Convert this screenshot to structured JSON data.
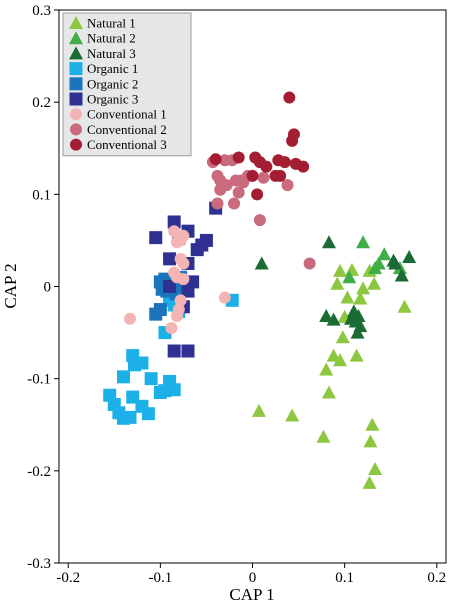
{
  "chart_data": {
    "type": "scatter",
    "title": "",
    "xlabel": "CAP 1",
    "ylabel": "CAP 2",
    "xlim": [
      -0.21,
      0.21
    ],
    "ylim": [
      -0.3,
      0.3
    ],
    "xticks": [
      -0.2,
      -0.1,
      0,
      0.1,
      0.2
    ],
    "xtick_labels": [
      "-0.2",
      "-0.1",
      "0",
      "0.1",
      "0.2"
    ],
    "yticks": [
      -0.3,
      -0.2,
      -0.1,
      0,
      0.1,
      0.2,
      0.3
    ],
    "ytick_labels": [
      "-0.3",
      "-0.2",
      "-0.1",
      "0",
      "0.1",
      "0.2",
      "0.3"
    ],
    "grid": false,
    "legend_position": "top-left",
    "series": [
      {
        "name": "Natural 1",
        "marker": "triangle",
        "color": "#8dc63f",
        "points": [
          [
            0.007,
            -0.135
          ],
          [
            0.043,
            -0.14
          ],
          [
            0.077,
            -0.163
          ],
          [
            0.083,
            -0.115
          ],
          [
            0.08,
            -0.09
          ],
          [
            0.088,
            -0.075
          ],
          [
            0.095,
            -0.08
          ],
          [
            0.113,
            -0.075
          ],
          [
            0.13,
            -0.15
          ],
          [
            0.128,
            -0.168
          ],
          [
            0.133,
            -0.198
          ],
          [
            0.127,
            -0.213
          ],
          [
            0.098,
            -0.055
          ],
          [
            0.1,
            -0.033
          ],
          [
            0.103,
            -0.012
          ],
          [
            0.117,
            -0.013
          ],
          [
            0.092,
            0.003
          ],
          [
            0.095,
            0.017
          ],
          [
            0.127,
            0.017
          ],
          [
            0.12,
            -0.002
          ],
          [
            0.132,
            0.003
          ],
          [
            0.165,
            -0.022
          ],
          [
            0.108,
            0.018
          ]
        ]
      },
      {
        "name": "Natural 2",
        "marker": "triangle",
        "color": "#3fae49",
        "points": [
          [
            0.137,
            0.025
          ],
          [
            0.143,
            0.035
          ],
          [
            0.133,
            0.02
          ],
          [
            0.16,
            0.02
          ],
          [
            0.12,
            0.048
          ],
          [
            0.105,
            0.01
          ]
        ]
      },
      {
        "name": "Natural 3",
        "marker": "triangle",
        "color": "#1a6b34",
        "points": [
          [
            0.01,
            0.025
          ],
          [
            0.083,
            0.048
          ],
          [
            0.155,
            0.025
          ],
          [
            0.17,
            0.032
          ],
          [
            0.162,
            0.012
          ],
          [
            0.08,
            -0.032
          ],
          [
            0.088,
            -0.036
          ],
          [
            0.11,
            -0.027
          ],
          [
            0.114,
            -0.05
          ],
          [
            0.117,
            -0.043
          ],
          [
            0.112,
            -0.038
          ],
          [
            0.115,
            -0.032
          ],
          [
            0.153,
            0.028
          ],
          [
            0.107,
            -0.035
          ]
        ]
      },
      {
        "name": "Organic 1",
        "marker": "square",
        "color": "#1cb0e8",
        "points": [
          [
            -0.155,
            -0.118
          ],
          [
            -0.15,
            -0.128
          ],
          [
            -0.145,
            -0.137
          ],
          [
            -0.14,
            -0.143
          ],
          [
            -0.133,
            -0.142
          ],
          [
            -0.14,
            -0.098
          ],
          [
            -0.13,
            -0.12
          ],
          [
            -0.12,
            -0.13
          ],
          [
            -0.113,
            -0.138
          ],
          [
            -0.11,
            -0.1
          ],
          [
            -0.1,
            -0.115
          ],
          [
            -0.095,
            -0.113
          ],
          [
            -0.09,
            -0.103
          ],
          [
            -0.085,
            -0.112
          ],
          [
            -0.128,
            -0.085
          ],
          [
            -0.12,
            -0.083
          ],
          [
            -0.13,
            -0.075
          ],
          [
            -0.095,
            -0.05
          ],
          [
            -0.08,
            -0.027
          ],
          [
            -0.085,
            -0.02
          ],
          [
            -0.09,
            -0.015
          ],
          [
            -0.085,
            -0.01
          ],
          [
            -0.09,
            0.0
          ],
          [
            -0.022,
            -0.015
          ]
        ]
      },
      {
        "name": "Organic 2",
        "marker": "square",
        "color": "#1b75bc",
        "points": [
          [
            -0.1,
            0.005
          ],
          [
            -0.095,
            0.008
          ],
          [
            -0.09,
            0.005
          ],
          [
            -0.087,
            -0.003
          ],
          [
            -0.085,
            0.0
          ],
          [
            -0.08,
            0.0
          ],
          [
            -0.078,
            0.01
          ],
          [
            -0.098,
            -0.003
          ],
          [
            -0.093,
            -0.005
          ],
          [
            -0.083,
            -0.008
          ],
          [
            -0.1,
            -0.025
          ],
          [
            -0.105,
            -0.03
          ]
        ]
      },
      {
        "name": "Organic 3",
        "marker": "square",
        "color": "#2e3192",
        "points": [
          [
            -0.105,
            0.053
          ],
          [
            -0.085,
            0.07
          ],
          [
            -0.07,
            0.06
          ],
          [
            -0.04,
            0.085
          ],
          [
            -0.055,
            0.045
          ],
          [
            -0.05,
            0.05
          ],
          [
            -0.08,
            0.052
          ],
          [
            -0.06,
            0.04
          ],
          [
            -0.07,
            0.025
          ],
          [
            -0.09,
            0.03
          ],
          [
            -0.065,
            0.005
          ],
          [
            -0.07,
            -0.005
          ],
          [
            -0.075,
            -0.022
          ],
          [
            -0.085,
            -0.07
          ],
          [
            -0.07,
            -0.07
          ],
          [
            -0.09,
            0.0
          ]
        ]
      },
      {
        "name": "Conventional 1",
        "marker": "circle",
        "color": "#f5b4b4",
        "points": [
          [
            -0.085,
            0.06
          ],
          [
            -0.075,
            0.055
          ],
          [
            -0.078,
            0.05
          ],
          [
            -0.082,
            0.048
          ],
          [
            -0.078,
            0.03
          ],
          [
            -0.075,
            0.025
          ],
          [
            -0.085,
            0.015
          ],
          [
            -0.082,
            0.01
          ],
          [
            -0.075,
            0.008
          ],
          [
            -0.088,
            -0.045
          ],
          [
            -0.082,
            -0.032
          ],
          [
            -0.08,
            -0.025
          ],
          [
            -0.078,
            -0.015
          ],
          [
            -0.133,
            -0.035
          ],
          [
            -0.03,
            -0.012
          ]
        ]
      },
      {
        "name": "Conventional 2",
        "marker": "circle",
        "color": "#c96b7c",
        "points": [
          [
            -0.043,
            0.135
          ],
          [
            -0.038,
            0.12
          ],
          [
            -0.035,
            0.115
          ],
          [
            -0.03,
            0.137
          ],
          [
            -0.028,
            0.11
          ],
          [
            -0.022,
            0.137
          ],
          [
            -0.018,
            0.115
          ],
          [
            -0.035,
            0.105
          ],
          [
            -0.038,
            0.09
          ],
          [
            -0.02,
            0.09
          ],
          [
            -0.015,
            0.102
          ],
          [
            0.012,
            0.118
          ],
          [
            0.008,
            0.072
          ],
          [
            0.038,
            0.11
          ],
          [
            0.062,
            0.025
          ],
          [
            -0.012,
            0.115
          ],
          [
            -0.01,
            0.113
          ],
          [
            -0.005,
            0.12
          ]
        ]
      },
      {
        "name": "Conventional 3",
        "marker": "circle",
        "color": "#a31e32",
        "points": [
          [
            -0.04,
            0.138
          ],
          [
            -0.015,
            0.14
          ],
          [
            0.003,
            0.14
          ],
          [
            0.008,
            0.135
          ],
          [
            0.015,
            0.13
          ],
          [
            0.025,
            0.12
          ],
          [
            0.03,
            0.12
          ],
          [
            0.035,
            0.135
          ],
          [
            0.04,
            0.205
          ],
          [
            0.043,
            0.158
          ],
          [
            0.045,
            0.165
          ],
          [
            0.047,
            0.133
          ],
          [
            0.055,
            0.13
          ],
          [
            0.028,
            0.137
          ],
          [
            0.0,
            0.12
          ],
          [
            0.005,
            0.1
          ]
        ]
      }
    ]
  }
}
